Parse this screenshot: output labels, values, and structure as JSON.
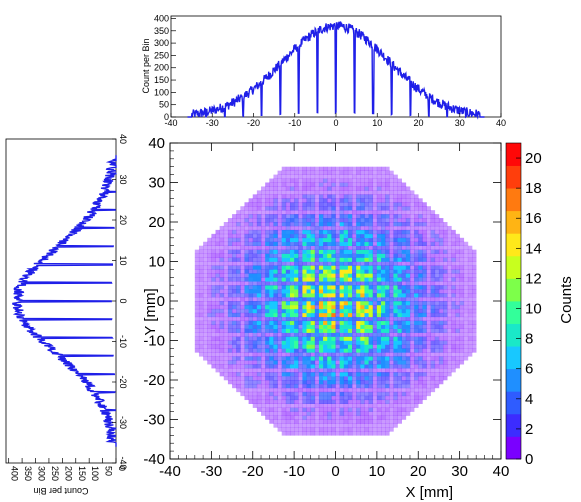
{
  "chart_data": [
    {
      "type": "histogram",
      "panel": "top-x-projection",
      "ylabel": "Count per Bin",
      "xlabel": "",
      "xlim": [
        -40,
        40
      ],
      "ylim": [
        0,
        410
      ],
      "x_ticks": [
        -40,
        -30,
        -20,
        -10,
        0,
        10,
        20,
        30,
        40
      ],
      "y_ticks": [
        0,
        50,
        100,
        150,
        200,
        250,
        300,
        350,
        400
      ],
      "profile": {
        "shape": "gaussian",
        "mean": 0,
        "sigma": 13,
        "peak": 370,
        "support": [
          -35,
          35
        ]
      },
      "dips_at": [
        -31.5,
        -27,
        -22.5,
        -18,
        -13.5,
        -9,
        -4.5,
        0,
        4.5,
        9,
        13.5,
        18,
        22.5,
        27,
        31.5
      ],
      "color": "#1f1fe8"
    },
    {
      "type": "histogram",
      "panel": "left-y-projection",
      "ylabel": "Count per Bin",
      "xlabel": "",
      "xlim": [
        -40,
        40
      ],
      "ylim": [
        0,
        410
      ],
      "x_ticks": [
        -40,
        -30,
        -20,
        -10,
        0,
        10,
        20,
        30,
        40
      ],
      "y_ticks": [
        0,
        50,
        100,
        150,
        200,
        250,
        300,
        350,
        400
      ],
      "profile": {
        "shape": "gaussian",
        "mean": 0,
        "sigma": 13,
        "peak": 370,
        "support": [
          -35,
          35
        ]
      },
      "dips_at": [
        -31.5,
        -27,
        -22.5,
        -18,
        -13.5,
        -9,
        -4.5,
        0,
        4.5,
        9,
        13.5,
        18,
        22.5,
        27,
        31.5
      ],
      "color": "#1f1fe8"
    },
    {
      "type": "heatmap",
      "panel": "main-2d",
      "xlabel": "X [mm]",
      "ylabel": "Y [mm]",
      "xlim": [
        -40,
        40
      ],
      "ylim": [
        -40,
        40
      ],
      "x_ticks": [
        -40,
        -30,
        -20,
        -10,
        0,
        10,
        20,
        30,
        40
      ],
      "y_ticks": [
        -40,
        -30,
        -20,
        -10,
        0,
        10,
        20,
        30,
        40
      ],
      "colorbar": {
        "label": "Counts",
        "range": [
          0,
          21
        ],
        "ticks": [
          0,
          2,
          4,
          6,
          8,
          10,
          12,
          14,
          16,
          18,
          20
        ]
      },
      "footprint": {
        "shape": "stepped-octagon",
        "radius": 34,
        "cell_pitch": 4.5
      },
      "peak_counts": 12,
      "colors": [
        "#7a00ff",
        "#3c2cff",
        "#2f5cff",
        "#1f8fff",
        "#18c8ff",
        "#1ae8c8",
        "#33ff9a",
        "#7dff4a",
        "#c8ff1e",
        "#ffe81a",
        "#ffb414",
        "#ff7a10",
        "#ff3e0c",
        "#ff0808"
      ]
    }
  ]
}
